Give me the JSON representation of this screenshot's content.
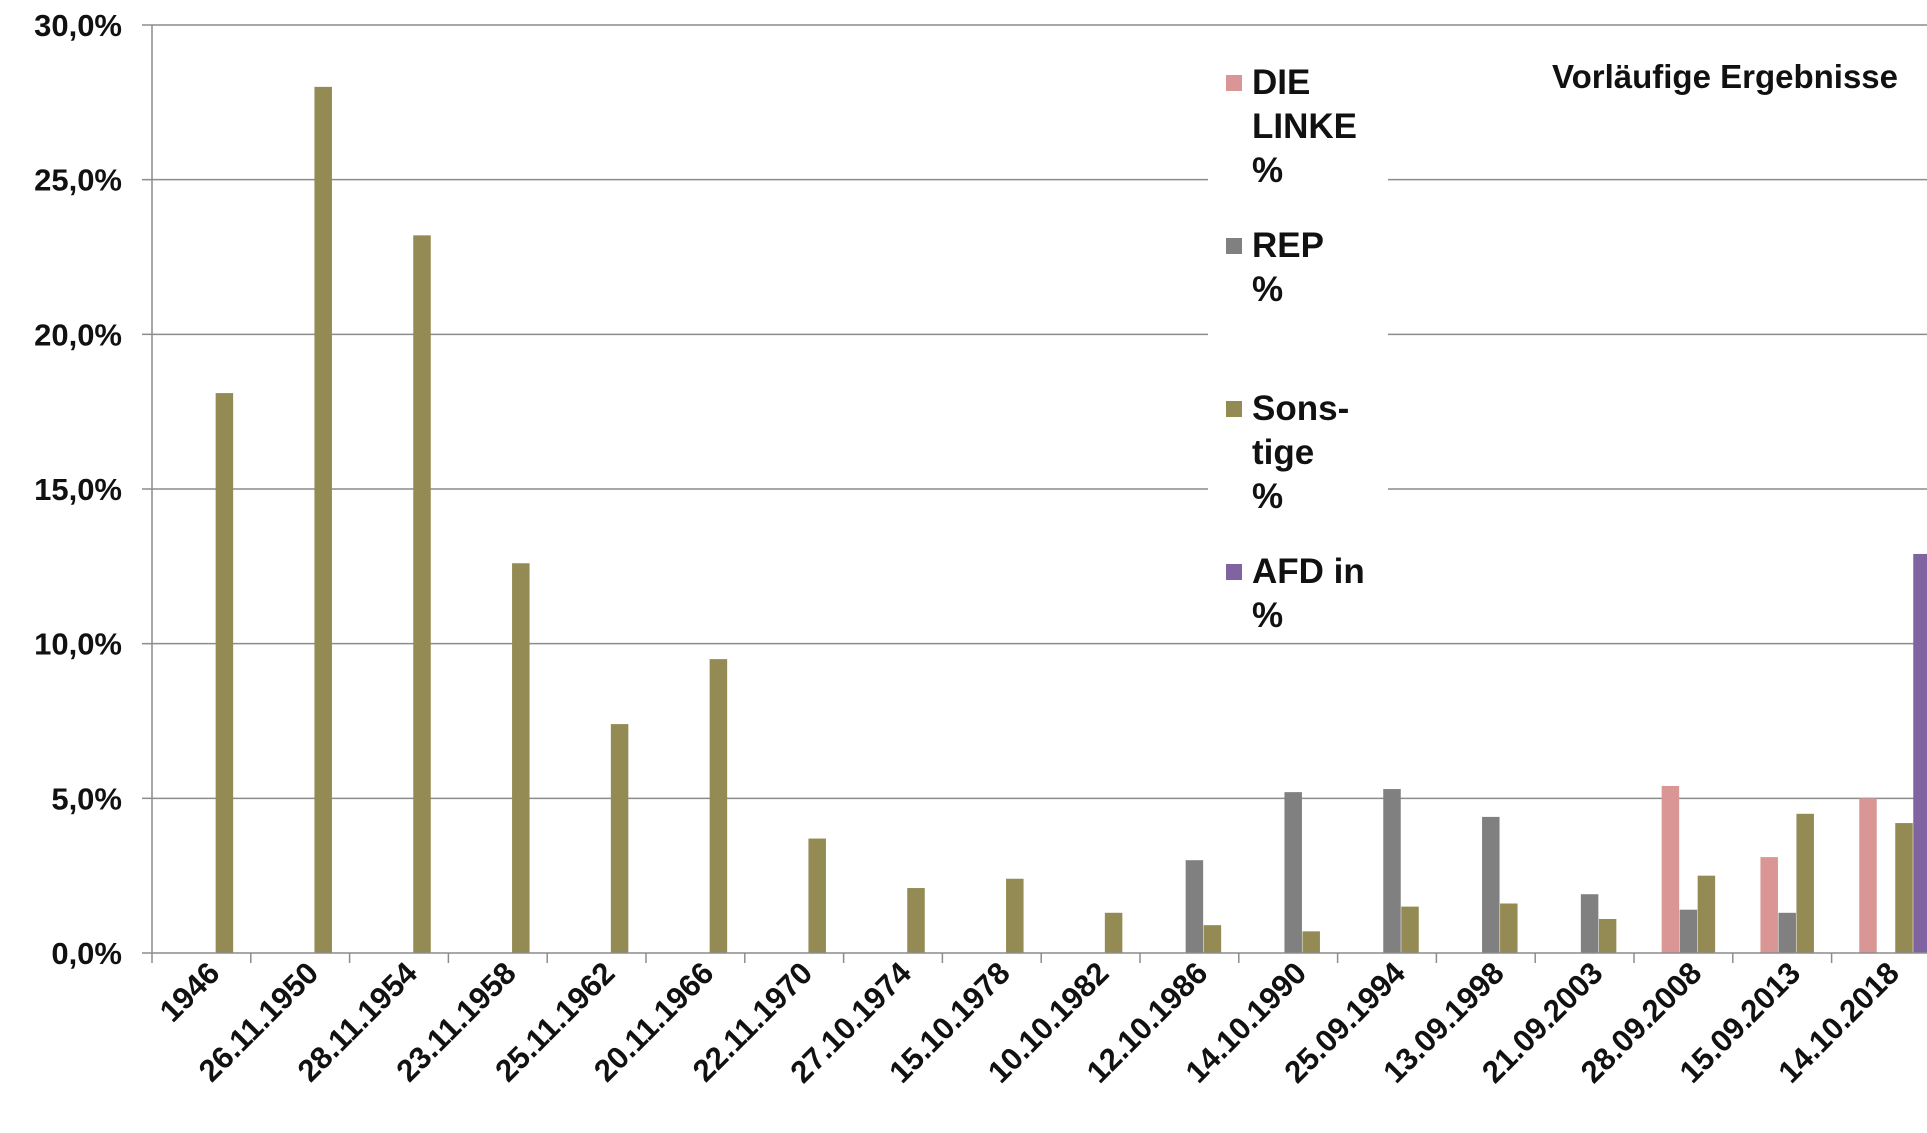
{
  "chart_data": {
    "type": "bar",
    "annotation": "Vorläufige Ergebnisse",
    "ylim": [
      0,
      30
    ],
    "yticks": [
      0,
      5,
      10,
      15,
      20,
      25,
      30
    ],
    "ytick_labels": [
      "0,0%",
      "5,0%",
      "10,0%",
      "15,0%",
      "20,0%",
      "25,0%",
      "30,0%"
    ],
    "grid": "horizontal",
    "legend_position": "top-right",
    "categories": [
      "1946",
      "26.11.1950",
      "28.11.1954",
      "23.11.1958",
      "25.11.1962",
      "20.11.1966",
      "22.11.1970",
      "27.10.1974",
      "15.10.1978",
      "10.10.1982",
      "12.10.1986",
      "14.10.1990",
      "25.09.1994",
      "13.09.1998",
      "21.09.2003",
      "28.09.2008",
      "15.09.2013",
      "14.10.2018"
    ],
    "series": [
      {
        "name": "DIE LINKE %",
        "legend_lines": [
          "DIE",
          "LINKE",
          "%"
        ],
        "color": "#d99694",
        "values": [
          null,
          null,
          null,
          null,
          null,
          null,
          null,
          null,
          null,
          null,
          null,
          null,
          null,
          null,
          null,
          5.4,
          3.1,
          5.0
        ]
      },
      {
        "name": "REP %",
        "legend_lines": [
          "REP",
          "%"
        ],
        "color": "#808080",
        "values": [
          null,
          null,
          null,
          null,
          null,
          null,
          null,
          null,
          null,
          null,
          3.0,
          5.2,
          5.3,
          4.4,
          1.9,
          1.4,
          1.3,
          null
        ]
      },
      {
        "name": "Sons-tige %",
        "legend_lines": [
          "Sons-",
          "tige",
          "%"
        ],
        "color": "#948a54",
        "values": [
          18.1,
          28.0,
          23.2,
          12.6,
          7.4,
          9.5,
          3.7,
          2.1,
          2.4,
          1.3,
          0.9,
          0.7,
          1.5,
          1.6,
          1.1,
          2.5,
          4.5,
          4.2
        ]
      },
      {
        "name": "AFD in %",
        "legend_lines": [
          "AFD in",
          "%"
        ],
        "color": "#8064a2",
        "values": [
          null,
          null,
          null,
          null,
          null,
          null,
          null,
          null,
          null,
          null,
          null,
          null,
          null,
          null,
          null,
          null,
          null,
          12.9
        ]
      }
    ]
  }
}
